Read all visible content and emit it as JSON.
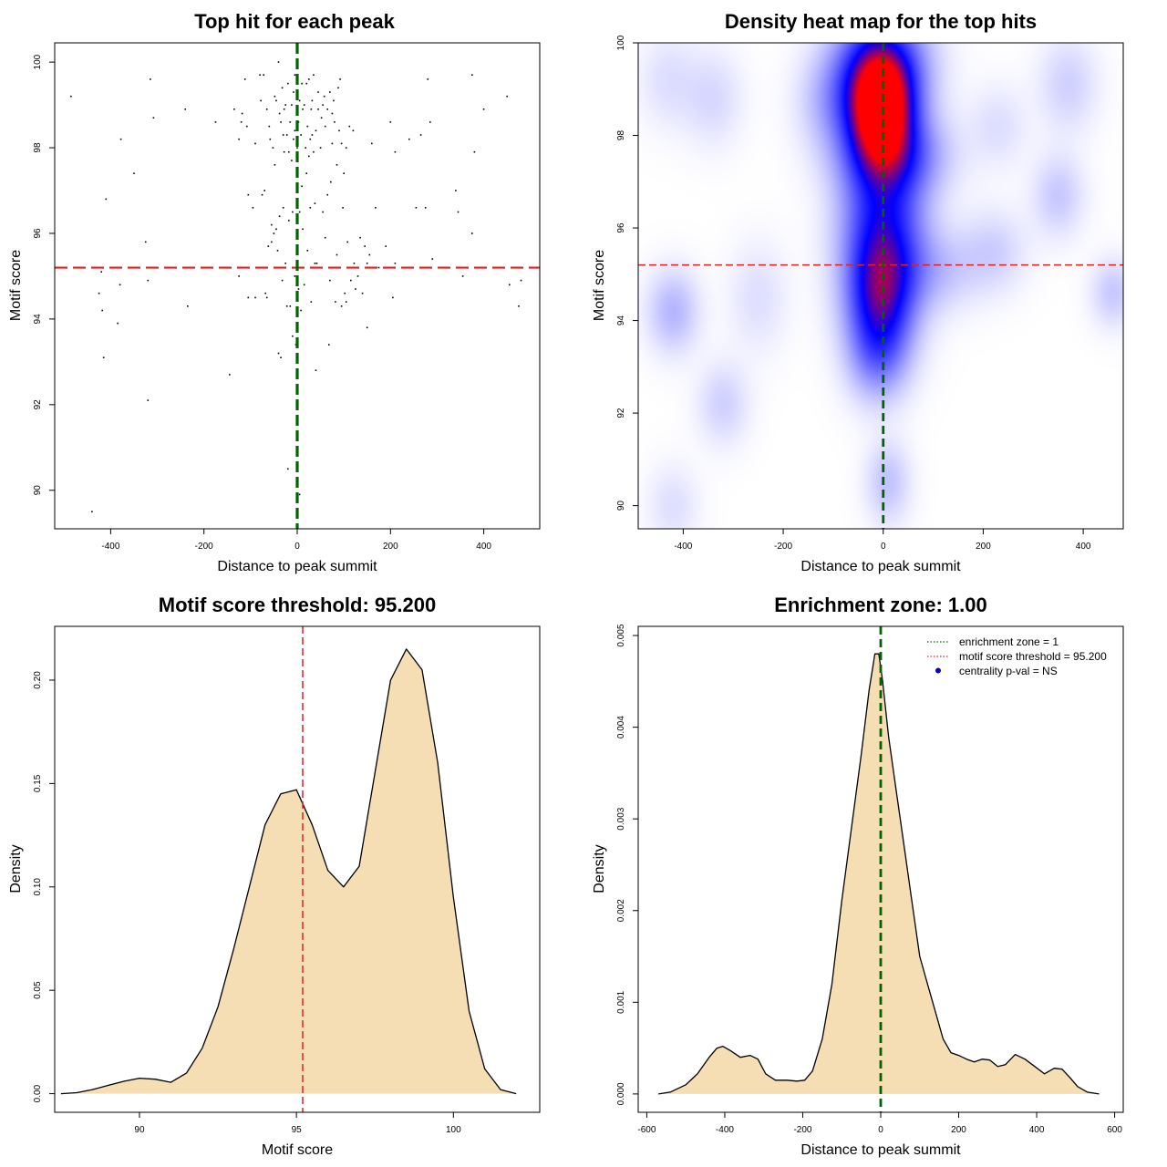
{
  "chart_data": [
    {
      "type": "scatter",
      "title": "Top hit for each peak",
      "xlabel": "Distance to peak summit",
      "ylabel": "Motif score",
      "xlim": [
        -520,
        520
      ],
      "ylim": [
        89.1,
        100.45
      ],
      "xticks": [
        -400,
        -200,
        0,
        200,
        400
      ],
      "yticks": [
        90,
        92,
        94,
        96,
        98,
        100
      ],
      "vline": {
        "x": 0,
        "color": "#006400"
      },
      "hline": {
        "y": 95.2,
        "color": "#dd2222"
      },
      "points": [
        [
          -485,
          99.2
        ],
        [
          -440,
          89.5
        ],
        [
          -425,
          94.6
        ],
        [
          -420,
          95.1
        ],
        [
          -418,
          94.2
        ],
        [
          -415,
          93.1
        ],
        [
          -410,
          96.8
        ],
        [
          -385,
          93.9
        ],
        [
          -380,
          94.8
        ],
        [
          -378,
          98.2
        ],
        [
          -350,
          97.4
        ],
        [
          -325,
          95.8
        ],
        [
          -320,
          92.1
        ],
        [
          -320,
          94.9
        ],
        [
          -315,
          99.6
        ],
        [
          -308,
          98.7
        ],
        [
          -240,
          98.9
        ],
        [
          -235,
          94.3
        ],
        [
          -175,
          98.6
        ],
        [
          -145,
          92.7
        ],
        [
          -135,
          98.9
        ],
        [
          -125,
          98.2
        ],
        [
          -125,
          95.0
        ],
        [
          -120,
          98.6
        ],
        [
          -118,
          98.8
        ],
        [
          -112,
          99.6
        ],
        [
          -108,
          98.5
        ],
        [
          -105,
          96.9
        ],
        [
          -105,
          94.5
        ],
        [
          -95,
          96.6
        ],
        [
          -90,
          98.1
        ],
        [
          -90,
          94.5
        ],
        [
          -80,
          99.7
        ],
        [
          -78,
          99.1
        ],
        [
          -75,
          96.9
        ],
        [
          -72,
          99.7
        ],
        [
          -70,
          97.0
        ],
        [
          -68,
          94.6
        ],
        [
          -65,
          94.5
        ],
        [
          -65,
          98.9
        ],
        [
          -62,
          95.7
        ],
        [
          -60,
          98.5
        ],
        [
          -58,
          98.2
        ],
        [
          -55,
          96.2
        ],
        [
          -55,
          95.8
        ],
        [
          -52,
          98.0
        ],
        [
          -50,
          96.0
        ],
        [
          -48,
          99.2
        ],
        [
          -48,
          97.6
        ],
        [
          -45,
          99.1
        ],
        [
          -45,
          96.1
        ],
        [
          -42,
          95.6
        ],
        [
          -40,
          93.2
        ],
        [
          -40,
          100.0
        ],
        [
          -38,
          96.4
        ],
        [
          -38,
          98.8
        ],
        [
          -35,
          98.6
        ],
        [
          -35,
          93.1
        ],
        [
          -32,
          99.4
        ],
        [
          -32,
          94.9
        ],
        [
          -30,
          98.3
        ],
        [
          -30,
          96.6
        ],
        [
          -28,
          98.9
        ],
        [
          -28,
          97.9
        ],
        [
          -25,
          99.0
        ],
        [
          -25,
          95.3
        ],
        [
          -22,
          94.3
        ],
        [
          -22,
          98.3
        ],
        [
          -20,
          99.5
        ],
        [
          -20,
          90.5
        ],
        [
          -18,
          97.9
        ],
        [
          -18,
          96.3
        ],
        [
          -15,
          98.6
        ],
        [
          -15,
          94.3
        ],
        [
          -12,
          99.0
        ],
        [
          -12,
          97.7
        ],
        [
          -10,
          93.6
        ],
        [
          -10,
          96.5
        ],
        [
          -8,
          99.3
        ],
        [
          -8,
          98.2
        ],
        [
          -5,
          95.0
        ],
        [
          -5,
          99.7
        ],
        [
          -5,
          98.4
        ],
        [
          -3,
          93.4
        ],
        [
          0,
          96.4
        ],
        [
          0,
          95.2
        ],
        [
          0,
          93.9
        ],
        [
          0,
          98.0
        ],
        [
          3,
          98.6
        ],
        [
          3,
          94.7
        ],
        [
          5,
          99.1
        ],
        [
          5,
          96.5
        ],
        [
          5,
          89.9
        ],
        [
          8,
          98.3
        ],
        [
          8,
          94.2
        ],
        [
          10,
          99.5
        ],
        [
          10,
          97.1
        ],
        [
          12,
          98.9
        ],
        [
          12,
          96.1
        ],
        [
          15,
          99.0
        ],
        [
          15,
          94.8
        ],
        [
          18,
          98.0
        ],
        [
          20,
          99.5
        ],
        [
          20,
          97.4
        ],
        [
          22,
          95.6
        ],
        [
          22,
          98.5
        ],
        [
          25,
          99.6
        ],
        [
          25,
          97.8
        ],
        [
          28,
          96.6
        ],
        [
          28,
          98.2
        ],
        [
          30,
          94.4
        ],
        [
          30,
          98.9
        ],
        [
          32,
          99.1
        ],
        [
          32,
          98.3
        ],
        [
          35,
          97.9
        ],
        [
          35,
          99.7
        ],
        [
          38,
          96.7
        ],
        [
          38,
          95.3
        ],
        [
          40,
          92.8
        ],
        [
          40,
          98.4
        ],
        [
          42,
          95.3
        ],
        [
          45,
          98.9
        ],
        [
          45,
          99.3
        ],
        [
          50,
          98.0
        ],
        [
          52,
          98.7
        ],
        [
          55,
          99.0
        ],
        [
          55,
          96.5
        ],
        [
          58,
          99.2
        ],
        [
          60,
          98.5
        ],
        [
          60,
          95.9
        ],
        [
          65,
          98.9
        ],
        [
          65,
          96.9
        ],
        [
          68,
          93.4
        ],
        [
          70,
          99.3
        ],
        [
          70,
          94.9
        ],
        [
          72,
          97.2
        ],
        [
          75,
          98.1
        ],
        [
          75,
          98.8
        ],
        [
          78,
          99.1
        ],
        [
          80,
          98.6
        ],
        [
          82,
          94.4
        ],
        [
          85,
          97.6
        ],
        [
          85,
          95.5
        ],
        [
          88,
          99.4
        ],
        [
          90,
          98.4
        ],
        [
          92,
          99.6
        ],
        [
          95,
          94.3
        ],
        [
          95,
          98.1
        ],
        [
          98,
          96.6
        ],
        [
          100,
          97.4
        ],
        [
          102,
          94.6
        ],
        [
          105,
          98.0
        ],
        [
          105,
          94.4
        ],
        [
          108,
          95.8
        ],
        [
          110,
          95.2
        ],
        [
          112,
          98.5
        ],
        [
          115,
          94.9
        ],
        [
          120,
          98.4
        ],
        [
          122,
          95.3
        ],
        [
          125,
          94.7
        ],
        [
          130,
          95.0
        ],
        [
          135,
          95.9
        ],
        [
          140,
          94.6
        ],
        [
          145,
          95.7
        ],
        [
          150,
          93.8
        ],
        [
          150,
          95.3
        ],
        [
          155,
          95.5
        ],
        [
          160,
          98.1
        ],
        [
          165,
          95.2
        ],
        [
          168,
          96.6
        ],
        [
          175,
          95.2
        ],
        [
          190,
          95.7
        ],
        [
          200,
          98.6
        ],
        [
          205,
          94.5
        ],
        [
          210,
          97.9
        ],
        [
          210,
          95.3
        ],
        [
          240,
          98.2
        ],
        [
          255,
          96.6
        ],
        [
          265,
          98.3
        ],
        [
          275,
          96.6
        ],
        [
          280,
          99.6
        ],
        [
          285,
          98.6
        ],
        [
          290,
          95.4
        ],
        [
          340,
          97.0
        ],
        [
          345,
          96.5
        ],
        [
          355,
          95.0
        ],
        [
          375,
          99.7
        ],
        [
          375,
          96.0
        ],
        [
          380,
          97.9
        ],
        [
          400,
          98.9
        ],
        [
          450,
          99.2
        ],
        [
          455,
          94.8
        ],
        [
          475,
          94.3
        ],
        [
          480,
          94.9
        ]
      ]
    },
    {
      "type": "heatmap",
      "title": "Density heat map for the top hits",
      "xlabel": "Distance to peak summit",
      "ylabel": "Motif score",
      "xlim": [
        -490,
        480
      ],
      "ylim": [
        89.5,
        100
      ],
      "xticks": [
        -400,
        -200,
        0,
        200,
        400
      ],
      "yticks": [
        90,
        92,
        94,
        96,
        98,
        100
      ],
      "vline": {
        "x": 0,
        "color": "#006400"
      },
      "hline": {
        "y": 95.2,
        "color": "#dd2222"
      },
      "colorscale": [
        "#ffffff",
        "#0000ff",
        "#ff0000"
      ],
      "blobs": [
        {
          "x": -5,
          "y": 98.6,
          "sx": 42,
          "sy": 0.75,
          "w": 1.6
        },
        {
          "x": -5,
          "y": 99.5,
          "sx": 60,
          "sy": 0.8,
          "w": 0.9
        },
        {
          "x": 0,
          "y": 96.3,
          "sx": 55,
          "sy": 1.4,
          "w": 0.85
        },
        {
          "x": -5,
          "y": 94.6,
          "sx": 45,
          "sy": 0.9,
          "w": 0.85
        },
        {
          "x": 20,
          "y": 97.6,
          "sx": 70,
          "sy": 0.6,
          "w": 0.5
        },
        {
          "x": -10,
          "y": 93.3,
          "sx": 40,
          "sy": 0.7,
          "w": 0.4
        },
        {
          "x": 10,
          "y": 90.5,
          "sx": 30,
          "sy": 0.6,
          "w": 0.2
        },
        {
          "x": 100,
          "y": 95.1,
          "sx": 60,
          "sy": 0.6,
          "w": 0.2
        },
        {
          "x": -100,
          "y": 98.7,
          "sx": 45,
          "sy": 0.7,
          "w": 0.25
        },
        {
          "x": -420,
          "y": 94.2,
          "sx": 35,
          "sy": 0.6,
          "w": 0.25
        },
        {
          "x": -340,
          "y": 98.8,
          "sx": 40,
          "sy": 0.7,
          "w": 0.12
        },
        {
          "x": -430,
          "y": 99.2,
          "sx": 40,
          "sy": 0.7,
          "w": 0.1
        },
        {
          "x": -320,
          "y": 92.2,
          "sx": 35,
          "sy": 0.6,
          "w": 0.15
        },
        {
          "x": 370,
          "y": 99.1,
          "sx": 40,
          "sy": 0.7,
          "w": 0.15
        },
        {
          "x": 350,
          "y": 96.7,
          "sx": 35,
          "sy": 0.6,
          "w": 0.18
        },
        {
          "x": 460,
          "y": 94.6,
          "sx": 30,
          "sy": 0.5,
          "w": 0.18
        },
        {
          "x": 220,
          "y": 95.5,
          "sx": 45,
          "sy": 0.6,
          "w": 0.15
        },
        {
          "x": 230,
          "y": 98.2,
          "sx": 40,
          "sy": 0.6,
          "w": 0.1
        },
        {
          "x": -420,
          "y": 90.0,
          "sx": 35,
          "sy": 0.6,
          "w": 0.1
        },
        {
          "x": -250,
          "y": 94.5,
          "sx": 40,
          "sy": 0.8,
          "w": 0.1
        }
      ]
    },
    {
      "type": "area",
      "title": "Motif score threshold: 95.200",
      "xlabel": "Motif score",
      "ylabel": "Density",
      "xlim": [
        87.3,
        102.75
      ],
      "ylim": [
        -0.009,
        0.226
      ],
      "xticks": [
        90,
        95,
        100
      ],
      "yticks": [
        0.0,
        0.05,
        0.1,
        0.15,
        0.2
      ],
      "ytick_labels": [
        "0.00",
        "0.05",
        "0.10",
        "0.15",
        "0.20"
      ],
      "vline": {
        "x": 95.2,
        "color": "#dd2222"
      },
      "fill": "#f5deb3",
      "x": [
        87.5,
        88.0,
        88.5,
        89.0,
        89.5,
        90.0,
        90.5,
        91.0,
        91.5,
        92.0,
        92.5,
        93.0,
        93.5,
        94.0,
        94.5,
        95.0,
        95.5,
        96.0,
        96.5,
        97.0,
        97.5,
        98.0,
        98.5,
        99.0,
        99.5,
        100.0,
        100.5,
        101.0,
        101.5,
        102.0
      ],
      "y": [
        0.0,
        0.0005,
        0.002,
        0.004,
        0.006,
        0.0075,
        0.007,
        0.0055,
        0.01,
        0.022,
        0.042,
        0.07,
        0.1,
        0.13,
        0.145,
        0.147,
        0.13,
        0.108,
        0.1,
        0.11,
        0.155,
        0.2,
        0.215,
        0.205,
        0.16,
        0.095,
        0.04,
        0.012,
        0.002,
        0.0
      ]
    },
    {
      "type": "area",
      "title": "Enrichment zone: 1.00",
      "xlabel": "Distance to peak summit",
      "ylabel": "Density",
      "xlim": [
        -622,
        622
      ],
      "ylim": [
        -0.0002,
        0.0051
      ],
      "xticks": [
        -600,
        -400,
        -200,
        0,
        200,
        400,
        600
      ],
      "yticks": [
        0.0,
        0.001,
        0.002,
        0.003,
        0.004,
        0.005
      ],
      "ytick_labels": [
        "0.000",
        "0.001",
        "0.002",
        "0.003",
        "0.004",
        "0.005"
      ],
      "vline": {
        "x": 0,
        "color": "#006400"
      },
      "fill": "#f5deb3",
      "x": [
        -570,
        -540,
        -500,
        -470,
        -440,
        -420,
        -405,
        -385,
        -360,
        -335,
        -315,
        -295,
        -270,
        -240,
        -215,
        -195,
        -175,
        -150,
        -125,
        -100,
        -75,
        -50,
        -30,
        -15,
        -5,
        5,
        20,
        40,
        60,
        80,
        100,
        120,
        140,
        160,
        180,
        200,
        220,
        240,
        260,
        280,
        300,
        320,
        345,
        370,
        395,
        420,
        445,
        465,
        485,
        505,
        530,
        560
      ],
      "y": [
        0.0,
        2e-05,
        0.0001,
        0.00022,
        0.0004,
        0.0005,
        0.00052,
        0.00047,
        0.0004,
        0.00042,
        0.00038,
        0.00022,
        0.00015,
        0.00015,
        0.00014,
        0.00015,
        0.00025,
        0.0006,
        0.0012,
        0.0021,
        0.0029,
        0.0037,
        0.0044,
        0.0048,
        0.0048,
        0.0045,
        0.0039,
        0.0033,
        0.0027,
        0.0021,
        0.0015,
        0.0012,
        0.0009,
        0.0006,
        0.00045,
        0.00042,
        0.00038,
        0.00035,
        0.00038,
        0.00037,
        0.0003,
        0.00032,
        0.00043,
        0.00038,
        0.0003,
        0.00022,
        0.00028,
        0.00027,
        0.00018,
        8e-05,
        2e-05,
        0.0
      ],
      "legend": {
        "position": "top-right",
        "items": [
          {
            "label": "enrichment zone = 1",
            "style": "dotted-line",
            "color": "#006400"
          },
          {
            "label": "motif score threshold = 95.200",
            "style": "dotted-line",
            "color": "#dd2222"
          },
          {
            "label": "centrality p-val = NS",
            "style": "dot",
            "color": "#0000cc"
          }
        ]
      }
    }
  ]
}
